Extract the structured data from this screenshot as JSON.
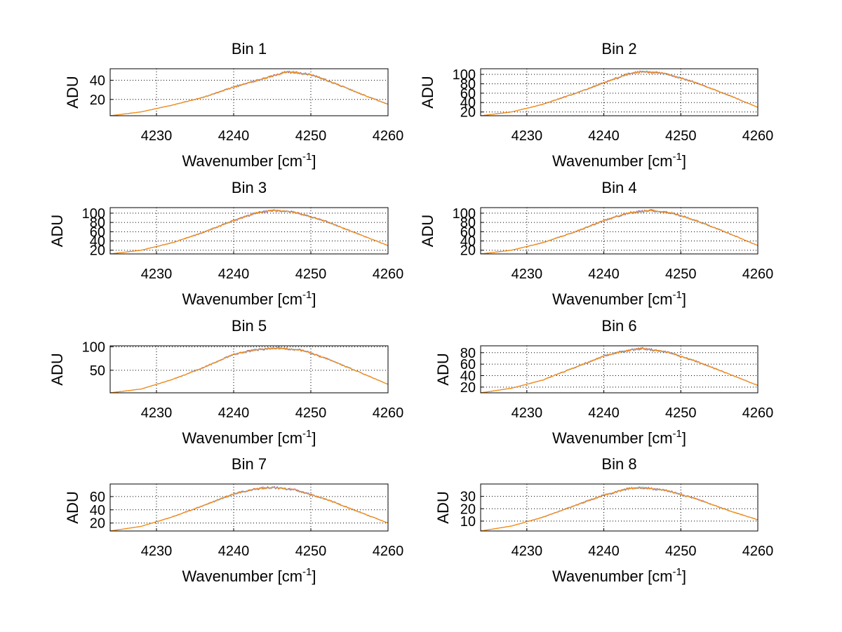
{
  "chart_data": [
    {
      "type": "line",
      "title": "Bin 1",
      "xlabel": "Wavenumber [cm",
      "xlabel_sup": "-1",
      "xlabel_end": "]",
      "ylabel": "ADU",
      "xlim": [
        4224,
        4260
      ],
      "ylim": [
        3,
        52
      ],
      "xticks": [
        4230,
        4240,
        4250,
        4260
      ],
      "yticks": [
        20,
        40
      ],
      "grid": true,
      "peak": {
        "x": 4247,
        "y": 49
      },
      "ends": [
        3,
        15
      ],
      "series": [
        {
          "color": "#ff8c00",
          "x": [
            4224,
            4228,
            4232,
            4236,
            4240,
            4244,
            4247,
            4250,
            4254,
            4257,
            4260
          ],
          "y": [
            3,
            7,
            14,
            22,
            33,
            42,
            49,
            46,
            34,
            24,
            15
          ]
        }
      ]
    },
    {
      "type": "line",
      "title": "Bin 2",
      "xlabel": "Wavenumber [cm",
      "xlabel_sup": "-1",
      "xlabel_end": "]",
      "ylabel": "ADU",
      "xlim": [
        4224,
        4260
      ],
      "ylim": [
        12,
        112
      ],
      "xticks": [
        4230,
        4240,
        4250,
        4260
      ],
      "yticks": [
        20,
        40,
        60,
        80,
        100
      ],
      "grid": true,
      "peak": {
        "x": 4245,
        "y": 106
      },
      "ends": [
        12,
        30
      ],
      "series": [
        {
          "color": "#ff8c00",
          "x": [
            4224,
            4228,
            4232,
            4236,
            4240,
            4243,
            4245,
            4248,
            4252,
            4256,
            4260
          ],
          "y": [
            12,
            20,
            36,
            58,
            82,
            100,
            106,
            102,
            82,
            57,
            30
          ]
        }
      ]
    },
    {
      "type": "line",
      "title": "Bin 3",
      "xlabel": "Wavenumber [cm",
      "xlabel_sup": "-1",
      "xlabel_end": "]",
      "ylabel": "ADU",
      "xlim": [
        4224,
        4260
      ],
      "ylim": [
        12,
        112
      ],
      "xticks": [
        4230,
        4240,
        4250,
        4260
      ],
      "yticks": [
        20,
        40,
        60,
        80,
        100
      ],
      "grid": true,
      "peak": {
        "x": 4245,
        "y": 106
      },
      "ends": [
        12,
        30
      ],
      "series": [
        {
          "color": "#ff8c00",
          "x": [
            4224,
            4228,
            4232,
            4236,
            4240,
            4243,
            4245,
            4248,
            4252,
            4256,
            4260
          ],
          "y": [
            12,
            20,
            36,
            58,
            84,
            101,
            106,
            102,
            82,
            56,
            30
          ]
        }
      ]
    },
    {
      "type": "line",
      "title": "Bin 4",
      "xlabel": "Wavenumber [cm",
      "xlabel_sup": "-1",
      "xlabel_end": "]",
      "ylabel": "ADU",
      "xlim": [
        4224,
        4260
      ],
      "ylim": [
        12,
        112
      ],
      "xticks": [
        4230,
        4240,
        4250,
        4260
      ],
      "yticks": [
        20,
        40,
        60,
        80,
        100
      ],
      "grid": true,
      "peak": {
        "x": 4245,
        "y": 106
      },
      "ends": [
        12,
        30
      ],
      "series": [
        {
          "color": "#ff8c00",
          "x": [
            4224,
            4228,
            4232,
            4236,
            4240,
            4243,
            4246,
            4249,
            4252,
            4256,
            4260
          ],
          "y": [
            12,
            20,
            36,
            58,
            84,
            100,
            106,
            100,
            84,
            58,
            30
          ]
        }
      ]
    },
    {
      "type": "line",
      "title": "Bin 5",
      "xlabel": "Wavenumber [cm",
      "xlabel_sup": "-1",
      "xlabel_end": "]",
      "ylabel": "ADU",
      "xlim": [
        4224,
        4260
      ],
      "ylim": [
        2,
        102
      ],
      "xticks": [
        4230,
        4240,
        4250,
        4260
      ],
      "yticks": [
        50,
        100
      ],
      "grid": true,
      "peak": {
        "x": 4245,
        "y": 97
      },
      "ends": [
        2,
        20
      ],
      "series": [
        {
          "color": "#ff8c00",
          "x": [
            4224,
            4228,
            4232,
            4236,
            4240,
            4243,
            4246,
            4249,
            4252,
            4256,
            4260
          ],
          "y": [
            2,
            10,
            30,
            55,
            84,
            94,
            97,
            92,
            75,
            48,
            20
          ]
        }
      ]
    },
    {
      "type": "line",
      "title": "Bin 6",
      "xlabel": "Wavenumber [cm",
      "xlabel_sup": "-1",
      "xlabel_end": "]",
      "ylabel": "ADU",
      "xlim": [
        4224,
        4260
      ],
      "ylim": [
        10,
        92
      ],
      "xticks": [
        4230,
        4240,
        4250,
        4260
      ],
      "yticks": [
        20,
        40,
        60,
        80
      ],
      "grid": true,
      "peak": {
        "x": 4245,
        "y": 87
      },
      "ends": [
        10,
        23
      ],
      "series": [
        {
          "color": "#ff8c00",
          "x": [
            4224,
            4228,
            4232,
            4236,
            4240,
            4243,
            4245,
            4248,
            4252,
            4256,
            4260
          ],
          "y": [
            10,
            18,
            32,
            53,
            74,
            84,
            87,
            82,
            65,
            44,
            23
          ]
        }
      ]
    },
    {
      "type": "line",
      "title": "Bin 7",
      "xlabel": "Wavenumber [cm",
      "xlabel_sup": "-1",
      "xlabel_end": "]",
      "ylabel": "ADU",
      "xlim": [
        4224,
        4260
      ],
      "ylim": [
        8,
        79
      ],
      "xticks": [
        4230,
        4240,
        4250,
        4260
      ],
      "yticks": [
        20,
        40,
        60
      ],
      "grid": true,
      "peak": {
        "x": 4245,
        "y": 74
      },
      "ends": [
        8,
        20
      ],
      "series": [
        {
          "color": "#ff8c00",
          "x": [
            4224,
            4228,
            4232,
            4236,
            4240,
            4243,
            4245,
            4248,
            4252,
            4256,
            4260
          ],
          "y": [
            8,
            15,
            29,
            46,
            64,
            72,
            74,
            70,
            56,
            38,
            20
          ]
        }
      ]
    },
    {
      "type": "line",
      "title": "Bin 8",
      "xlabel": "Wavenumber [cm",
      "xlabel_sup": "-1",
      "xlabel_end": "]",
      "ylabel": "ADU",
      "xlim": [
        4224,
        4260
      ],
      "ylim": [
        2,
        40
      ],
      "xticks": [
        4230,
        4240,
        4250,
        4260
      ],
      "yticks": [
        10,
        20,
        30
      ],
      "grid": true,
      "peak": {
        "x": 4245,
        "y": 37
      },
      "ends": [
        2,
        11
      ],
      "series": [
        {
          "color": "#ff8c00",
          "x": [
            4224,
            4228,
            4232,
            4236,
            4240,
            4243,
            4245,
            4248,
            4252,
            4256,
            4260
          ],
          "y": [
            2,
            6,
            13,
            22,
            31,
            36,
            37,
            35,
            28,
            19,
            11
          ]
        }
      ]
    }
  ]
}
